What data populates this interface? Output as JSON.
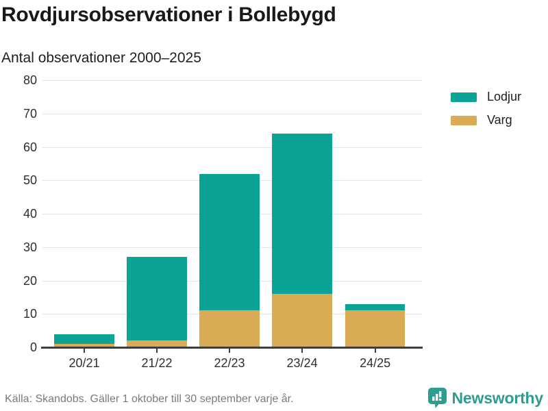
{
  "chart_data": {
    "type": "bar",
    "stacked": true,
    "title": "Rovdjursobservationer i Bollebygd",
    "subtitle": "Antal observationer 2000–2025",
    "categories": [
      "20/21",
      "21/22",
      "22/23",
      "23/24",
      "24/25"
    ],
    "series": [
      {
        "name": "Lodjur",
        "color": "#0aa396",
        "values": [
          3,
          25,
          41,
          48,
          2
        ]
      },
      {
        "name": "Varg",
        "color": "#d9ab55",
        "values": [
          1,
          2,
          11,
          16,
          11
        ]
      }
    ],
    "stack_order_bottom_to_top": [
      "Varg",
      "Lodjur"
    ],
    "totals": [
      4,
      27,
      52,
      64,
      13
    ],
    "ylim": [
      0,
      80
    ],
    "yticks": [
      0,
      10,
      20,
      30,
      40,
      50,
      60,
      70,
      80
    ],
    "xlabel": "",
    "ylabel": "",
    "grid": true,
    "legend_position": "right"
  },
  "footer": {
    "source": "Källa: Skandobs. Gäller 1 oktober till 30 september varje år."
  },
  "brand": {
    "name": "Newsworthy",
    "color": "#2f9c91"
  },
  "icons": {
    "logo": "chart-bubble-icon"
  }
}
